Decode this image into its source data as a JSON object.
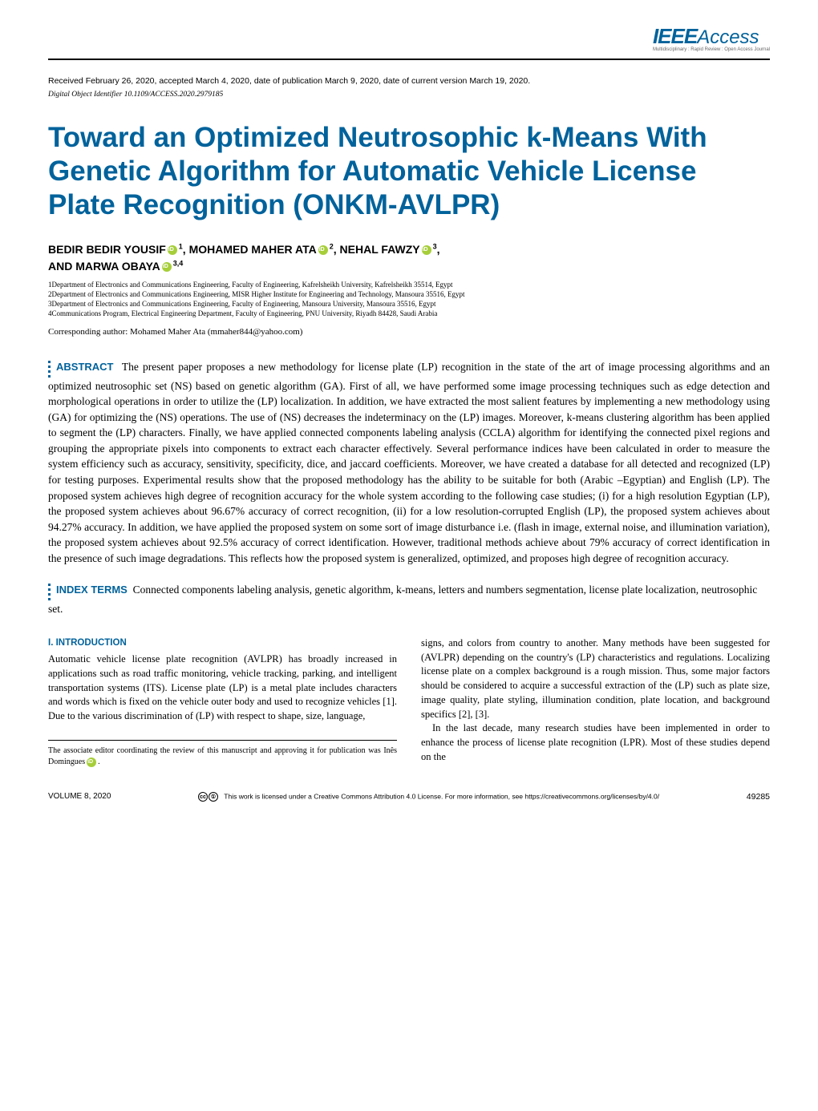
{
  "journal": {
    "logo_ieee": "IEEE",
    "logo_access": "Access",
    "tagline": "Multidisciplinary : Rapid Review : Open Access Journal"
  },
  "meta": {
    "received_line": "Received February 26, 2020, accepted March 4, 2020, date of publication March 9, 2020, date of current version March 19, 2020.",
    "doi_line": "Digital Object Identifier 10.1109/ACCESS.2020.2979185"
  },
  "title": "Toward an Optimized Neutrosophic k-Means With Genetic Algorithm for Automatic Vehicle License Plate Recognition (ONKM-AVLPR)",
  "authors": {
    "a1_name": "BEDIR BEDIR YOUSIF",
    "a1_sup": "1",
    "a2_name": "MOHAMED MAHER ATA",
    "a2_sup": "2",
    "a3_name": "NEHAL FAWZY",
    "a3_sup": "3",
    "a4_pre": "AND ",
    "a4_name": "MARWA OBAYA",
    "a4_sup": "3,4"
  },
  "affiliations": {
    "l1": "1Department of Electronics and Communications Engineering, Faculty of Engineering, Kafrelsheikh University, Kafrelsheikh 35514, Egypt",
    "l2": "2Department of Electronics and Communications Engineering, MISR Higher Institute for Engineering and Technology, Mansoura 35516, Egypt",
    "l3": "3Department of Electronics and Communications Engineering, Faculty of Engineering, Mansoura University, Mansoura 35516, Egypt",
    "l4": "4Communications Program, Electrical Engineering Department, Faculty of Engineering, PNU University, Riyadh 84428, Saudi Arabia"
  },
  "corresponding": "Corresponding author: Mohamed Maher Ata (mmaher844@yahoo.com)",
  "abstract": {
    "label": "ABSTRACT",
    "text": "The present paper proposes a new methodology for license plate (LP) recognition in the state of the art of image processing algorithms and an optimized neutrosophic set (NS) based on genetic algorithm (GA). First of all, we have performed some image processing techniques such as edge detection and morphological operations in order to utilize the (LP) localization. In addition, we have extracted the most salient features by implementing a new methodology using (GA) for optimizing the (NS) operations. The use of (NS) decreases the indeterminacy on the (LP) images. Moreover, k-means clustering algorithm has been applied to segment the (LP) characters. Finally, we have applied connected components labeling analysis (CCLA) algorithm for identifying the connected pixel regions and grouping the appropriate pixels into components to extract each character effectively. Several performance indices have been calculated in order to measure the system efficiency such as accuracy, sensitivity, specificity, dice, and jaccard coefficients. Moreover, we have created a database for all detected and recognized (LP) for testing purposes. Experimental results show that the proposed methodology has the ability to be suitable for both (Arabic –Egyptian) and English (LP). The proposed system achieves high degree of recognition accuracy for the whole system according to the following case studies; (i) for a high resolution Egyptian (LP), the proposed system achieves about 96.67% accuracy of correct recognition, (ii) for a low resolution-corrupted English (LP), the proposed system achieves about 94.27% accuracy. In addition, we have applied the proposed system on some sort of image disturbance i.e. (flash in image, external noise, and illumination variation), the proposed system achieves about 92.5% accuracy of correct identification. However, traditional methods achieve about 79% accuracy of correct identification in the presence of such image degradations. This reflects how the proposed system is generalized, optimized, and proposes high degree of recognition accuracy."
  },
  "index_terms": {
    "label": "INDEX TERMS",
    "text": "Connected components labeling analysis, genetic algorithm, k-means, letters and numbers segmentation, license plate localization, neutrosophic set."
  },
  "section1": {
    "heading": "I. INTRODUCTION",
    "col1_p1": "Automatic vehicle license plate recognition (AVLPR) has broadly increased in applications such as road traffic monitoring, vehicle tracking, parking, and intelligent transportation systems (ITS). License plate (LP) is a metal plate includes characters and words which is fixed on the vehicle outer body and used to recognize vehicles [1]. Due to the various discrimination of (LP) with respect to shape, size, language,",
    "editor_note": "The associate editor coordinating the review of this manuscript and approving it for publication was Inês Domingues",
    "col2_p1": "signs, and colors from country to another. Many methods have been suggested for (AVLPR) depending on the country's (LP) characteristics and regulations. Localizing license plate on a complex background is a rough mission. Thus, some major factors should be considered to acquire a successful extraction of the (LP) such as plate size, image quality, plate styling, illumination condition, plate location, and background specifics [2], [3].",
    "col2_p2": "In the last decade, many research studies have been implemented in order to enhance the process of license plate recognition (LPR). Most of these studies depend on the"
  },
  "footer": {
    "volume": "VOLUME 8, 2020",
    "license": "This work is licensed under a Creative Commons Attribution 4.0 License. For more information, see https://creativecommons.org/licenses/by/4.0/",
    "page": "49285"
  },
  "colors": {
    "brand": "#00629b",
    "orcid": "#a6ce39",
    "text": "#000000",
    "bg": "#ffffff"
  }
}
